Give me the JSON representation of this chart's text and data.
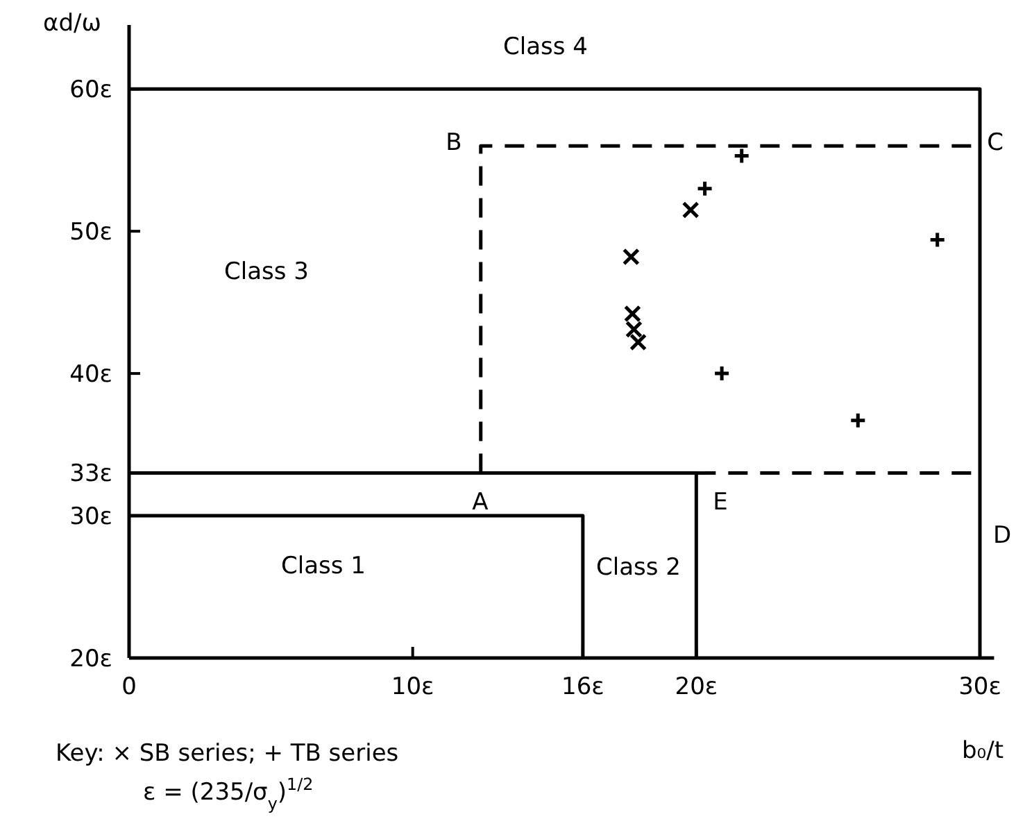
{
  "chart_data": {
    "type": "scatter",
    "xlabel": "b₀/t",
    "ylabel": "αd/ω",
    "xlim": [
      0,
      30.5
    ],
    "ylim": [
      20,
      64.5
    ],
    "xticks": [
      {
        "value": 0,
        "label": "0"
      },
      {
        "value": 10,
        "label": "10ε"
      },
      {
        "value": 16,
        "label": "16ε"
      },
      {
        "value": 20,
        "label": "20ε"
      },
      {
        "value": 30,
        "label": "30ε"
      }
    ],
    "yticks": [
      {
        "value": 20,
        "label": "20ε"
      },
      {
        "value": 30,
        "label": "30ε"
      },
      {
        "value": 33,
        "label": "33ε"
      },
      {
        "value": 40,
        "label": "40ε"
      },
      {
        "value": 50,
        "label": "50ε"
      },
      {
        "value": 60,
        "label": "60ε"
      }
    ],
    "grid": false,
    "series": [
      {
        "type": "line",
        "color": "#000000",
        "line_style": "solid",
        "marker": "none",
        "x": [
          0,
          30,
          30
        ],
        "values": [
          60,
          60,
          20
        ]
      },
      {
        "type": "line",
        "color": "#000000",
        "line_style": "solid",
        "marker": "none",
        "x": [
          0,
          20,
          20
        ],
        "values": [
          33,
          33,
          20
        ]
      },
      {
        "type": "line",
        "color": "#000000",
        "line_style": "solid",
        "marker": "none",
        "x": [
          0,
          16,
          16
        ],
        "values": [
          30,
          30,
          20
        ]
      },
      {
        "type": "line",
        "color": "#000000",
        "line_style": "dashed",
        "marker": "none",
        "x": [
          12.4,
          12.4,
          30
        ],
        "values": [
          33,
          56,
          56
        ]
      },
      {
        "type": "line",
        "color": "#000000",
        "line_style": "dashed",
        "marker": "none",
        "x": [
          20,
          30
        ],
        "values": [
          33,
          33
        ]
      },
      {
        "color": "#000000",
        "marker": "cross",
        "x": [
          19.8,
          17.7,
          17.75,
          17.8,
          17.95
        ],
        "values": [
          51.5,
          48.2,
          44.2,
          43.1,
          42.2
        ]
      },
      {
        "color": "#000000",
        "marker": "plus",
        "x": [
          21.6,
          20.3,
          20.9,
          25.7,
          28.5
        ],
        "values": [
          55.3,
          53.0,
          40.0,
          36.7,
          49.4
        ]
      }
    ],
    "annotations": [
      "Class 4",
      "Class 3",
      "Class 2",
      "Class 1",
      "A",
      "B",
      "C",
      "D",
      "E",
      "Key: × SB series; + TB series",
      "ε = (235/σ$_{y}$)$^{1/2}$"
    ]
  }
}
